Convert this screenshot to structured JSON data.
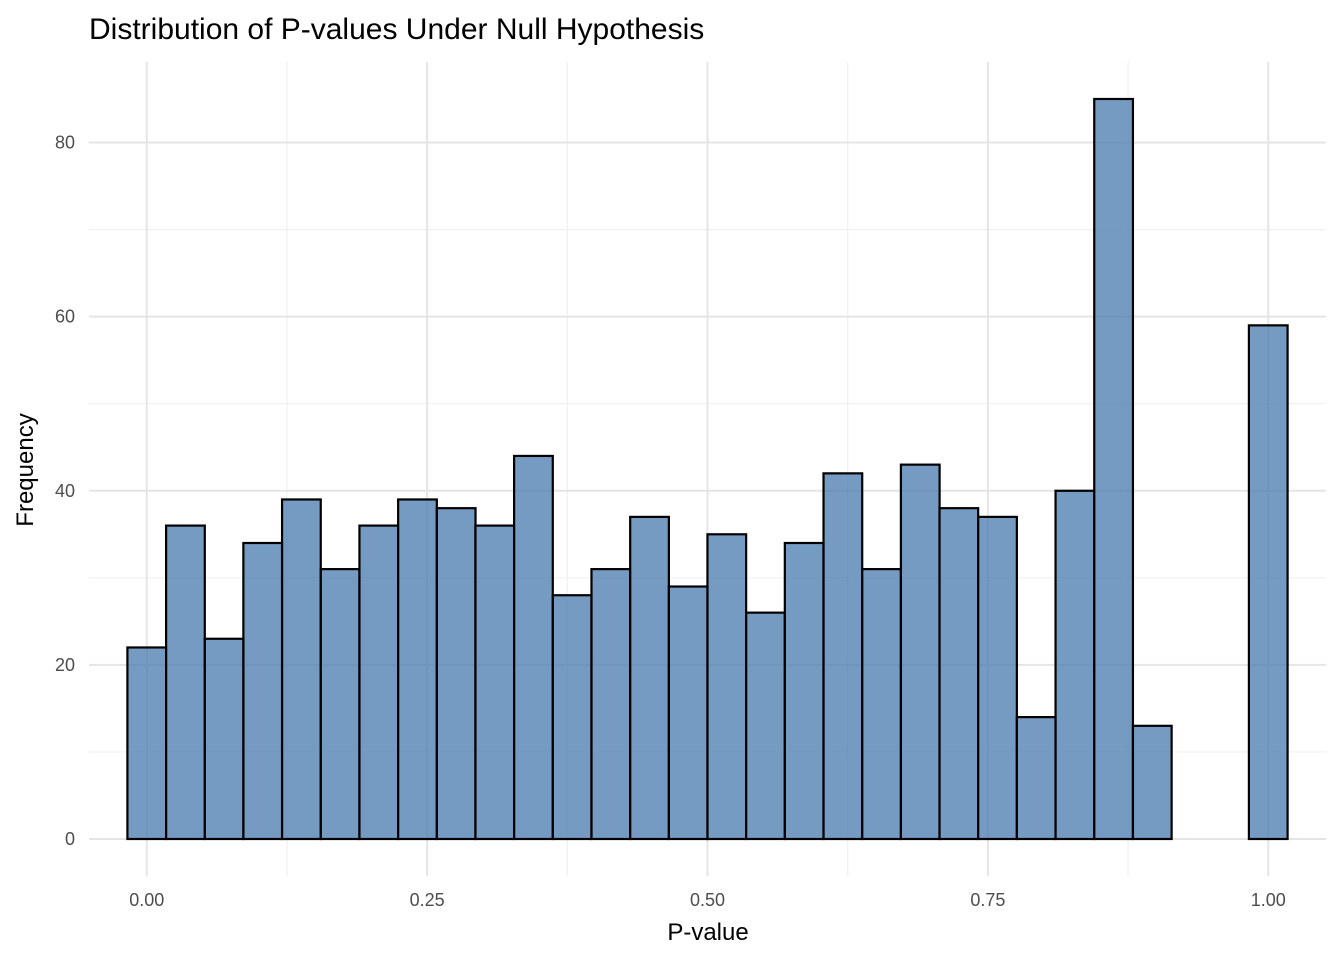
{
  "chart_data": {
    "type": "bar",
    "title": "Distribution of P-values Under Null Hypothesis",
    "xlabel": "P-value",
    "ylabel": "Frequency",
    "xlim": [
      -0.0515,
      1.0515
    ],
    "ylim": [
      -4.25,
      89.25
    ],
    "x_ticks": [
      0,
      0.25,
      0.5,
      0.75,
      1
    ],
    "x_tick_labels": [
      "0.00",
      "0.25",
      "0.50",
      "0.75",
      "1.00"
    ],
    "y_ticks": [
      0,
      20,
      40,
      60,
      80
    ],
    "y_tick_labels": [
      "0",
      "20",
      "40",
      "60",
      "80"
    ],
    "bin_width": 0.0345,
    "bin_centers": [
      0.0,
      0.0345,
      0.069,
      0.1034,
      0.1379,
      0.1724,
      0.2069,
      0.2414,
      0.2759,
      0.3103,
      0.3448,
      0.3793,
      0.4138,
      0.4483,
      0.4828,
      0.5172,
      0.5517,
      0.5862,
      0.6207,
      0.6552,
      0.6897,
      0.7241,
      0.7586,
      0.7931,
      0.8276,
      0.8621,
      0.8966,
      0.931,
      0.9655,
      1.0
    ],
    "values": [
      22,
      36,
      23,
      34,
      39,
      31,
      36,
      39,
      38,
      36,
      44,
      28,
      31,
      37,
      29,
      35,
      26,
      34,
      42,
      31,
      43,
      38,
      37,
      14,
      40,
      85,
      13,
      0,
      0,
      59
    ],
    "grid": true,
    "colors": {
      "bar_fill": "#4a7bb0",
      "bar_outline": "#000000",
      "grid": "#e5e5e5"
    }
  }
}
